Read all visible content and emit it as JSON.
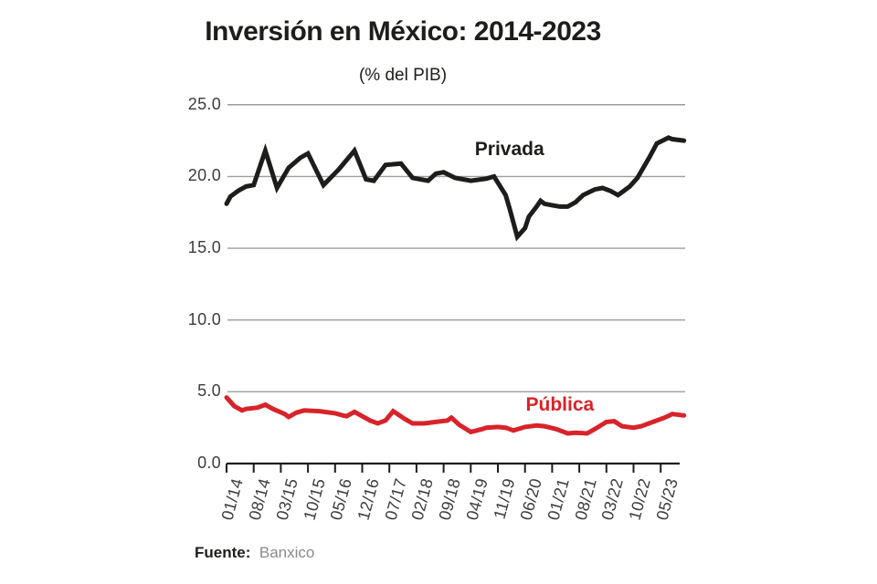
{
  "header": {
    "title": "Inversión en México: 2014-2023",
    "subtitle": "(% del PIB)"
  },
  "footer": {
    "source_label": "Fuente:",
    "source_value": "Banxico"
  },
  "chart_data": {
    "type": "line",
    "title": "Inversión en México: 2014-2023",
    "subtitle": "(% del PIB)",
    "ylabel": "% del PIB",
    "ylim": [
      0,
      25
    ],
    "grid": "horizontal",
    "legend_position": "inline-annotations",
    "x_unit": "months since 01/14",
    "x_tick_interval_months": 7,
    "x_tick_labels": [
      "01/14",
      "08/14",
      "03/15",
      "10/15",
      "05/16",
      "12/16",
      "07/17",
      "02/18",
      "09/18",
      "04/19",
      "11/19",
      "06/20",
      "01/21",
      "08/21",
      "03/22",
      "10/22",
      "05/23"
    ],
    "y_ticks": [
      {
        "label": "25.0",
        "value": 25
      },
      {
        "label": "20.0",
        "value": 20
      },
      {
        "label": "15.0",
        "value": 15
      },
      {
        "label": "10.0",
        "value": 10
      },
      {
        "label": "5.0",
        "value": 5
      },
      {
        "label": "0.0",
        "value": 0
      }
    ],
    "axis_color": "#1d1d1b",
    "grid_color": "#9c9c9c",
    "series": [
      {
        "name": "Privada",
        "color": "#1d1d1b",
        "annotation": {
          "text": "Privada",
          "month": 73,
          "value": 21.85
        },
        "points": [
          [
            0,
            18.1
          ],
          [
            1,
            18.6
          ],
          [
            3,
            19.0
          ],
          [
            5,
            19.3
          ],
          [
            7,
            19.4
          ],
          [
            10,
            21.8
          ],
          [
            13,
            19.2
          ],
          [
            16,
            20.6
          ],
          [
            19,
            21.3
          ],
          [
            21,
            21.6
          ],
          [
            25,
            19.4
          ],
          [
            29,
            20.5
          ],
          [
            33,
            21.8
          ],
          [
            36,
            19.8
          ],
          [
            38,
            19.7
          ],
          [
            41,
            20.8
          ],
          [
            45,
            20.9
          ],
          [
            48,
            19.9
          ],
          [
            52,
            19.7
          ],
          [
            54,
            20.2
          ],
          [
            56,
            20.3
          ],
          [
            59,
            19.9
          ],
          [
            61,
            19.8
          ],
          [
            63,
            19.7
          ],
          [
            67,
            19.85
          ],
          [
            69,
            20.0
          ],
          [
            72,
            18.7
          ],
          [
            73,
            17.8
          ],
          [
            75,
            15.8
          ],
          [
            77,
            16.4
          ],
          [
            78,
            17.2
          ],
          [
            80,
            17.9
          ],
          [
            81,
            18.3
          ],
          [
            82,
            18.1
          ],
          [
            84,
            18.0
          ],
          [
            86,
            17.9
          ],
          [
            88,
            17.9
          ],
          [
            90,
            18.2
          ],
          [
            92,
            18.7
          ],
          [
            95,
            19.1
          ],
          [
            97,
            19.2
          ],
          [
            99,
            19.0
          ],
          [
            101,
            18.7
          ],
          [
            102,
            18.9
          ],
          [
            104,
            19.3
          ],
          [
            106,
            19.9
          ],
          [
            109,
            21.3
          ],
          [
            111,
            22.3
          ],
          [
            114,
            22.7
          ],
          [
            115,
            22.6
          ],
          [
            118,
            22.5
          ]
        ]
      },
      {
        "name": "Pública",
        "color": "#d8232a",
        "annotation": {
          "text": "Pública",
          "month": 86,
          "value": 4.05
        },
        "points": [
          [
            0,
            4.6
          ],
          [
            2,
            4.0
          ],
          [
            4,
            3.7
          ],
          [
            5,
            3.8
          ],
          [
            8,
            3.9
          ],
          [
            10,
            4.1
          ],
          [
            12,
            3.8
          ],
          [
            15,
            3.45
          ],
          [
            16,
            3.25
          ],
          [
            18,
            3.55
          ],
          [
            20,
            3.7
          ],
          [
            24,
            3.65
          ],
          [
            28,
            3.5
          ],
          [
            30,
            3.35
          ],
          [
            31,
            3.3
          ],
          [
            33,
            3.6
          ],
          [
            35,
            3.3
          ],
          [
            37,
            3.0
          ],
          [
            39,
            2.8
          ],
          [
            41,
            3.0
          ],
          [
            43,
            3.65
          ],
          [
            46,
            3.1
          ],
          [
            48,
            2.8
          ],
          [
            51,
            2.8
          ],
          [
            54,
            2.9
          ],
          [
            57,
            3.0
          ],
          [
            58,
            3.2
          ],
          [
            60,
            2.7
          ],
          [
            63,
            2.2
          ],
          [
            66,
            2.4
          ],
          [
            67,
            2.5
          ],
          [
            70,
            2.55
          ],
          [
            72,
            2.5
          ],
          [
            74,
            2.3
          ],
          [
            77,
            2.55
          ],
          [
            80,
            2.65
          ],
          [
            82,
            2.6
          ],
          [
            85,
            2.4
          ],
          [
            88,
            2.1
          ],
          [
            90,
            2.15
          ],
          [
            93,
            2.1
          ],
          [
            95,
            2.4
          ],
          [
            98,
            2.9
          ],
          [
            100,
            2.95
          ],
          [
            102,
            2.6
          ],
          [
            105,
            2.5
          ],
          [
            107,
            2.6
          ],
          [
            110,
            2.9
          ],
          [
            113,
            3.2
          ],
          [
            115,
            3.45
          ],
          [
            118,
            3.35
          ]
        ]
      }
    ]
  }
}
